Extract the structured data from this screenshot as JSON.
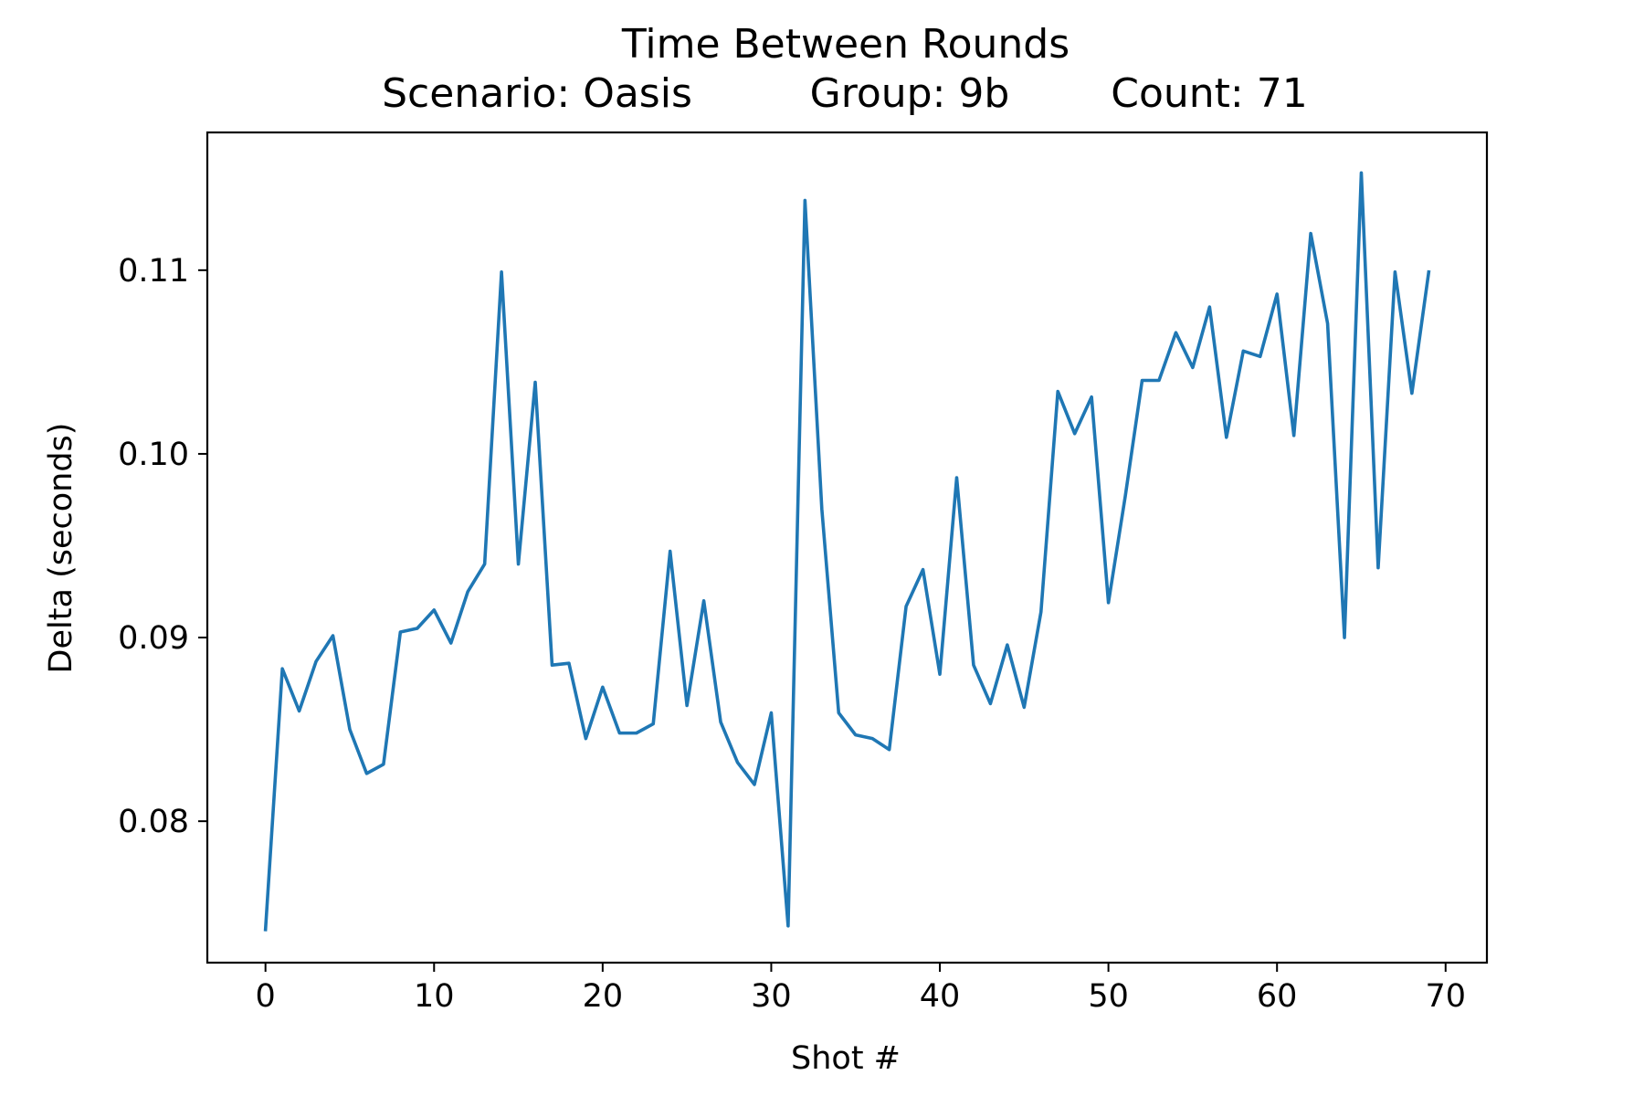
{
  "chart_data": {
    "type": "line",
    "title": "Time Between Rounds",
    "subtitle": {
      "scenario": "Scenario: Oasis",
      "group": "Group: 9b",
      "count": "Count: 71"
    },
    "xlabel": "Shot #",
    "ylabel": "Delta (seconds)",
    "xlim": [
      -3.45,
      72.45
    ],
    "ylim": [
      0.0723,
      0.1175
    ],
    "xticks": [
      0,
      10,
      20,
      30,
      40,
      50,
      60,
      70
    ],
    "xtick_labels": [
      "0",
      "10",
      "20",
      "30",
      "40",
      "50",
      "60",
      "70"
    ],
    "yticks": [
      0.08,
      0.09,
      0.1,
      0.11
    ],
    "ytick_labels": [
      "0.08",
      "0.09",
      "0.10",
      "0.11"
    ],
    "grid": false,
    "line_color": "#1f77b4",
    "series": [
      {
        "x": [
          0,
          1,
          2,
          3,
          4,
          5,
          6,
          7,
          8,
          9,
          10,
          11,
          12,
          13,
          14,
          15,
          16,
          17,
          18,
          19,
          20,
          21,
          22,
          23,
          24,
          25,
          26,
          27,
          28,
          29,
          30,
          31,
          32,
          33,
          34,
          35,
          36,
          37,
          38,
          39,
          40,
          41,
          42,
          43,
          44,
          45,
          46,
          47,
          48,
          49,
          50,
          51,
          52,
          53,
          54,
          55,
          56,
          57,
          58,
          59,
          60,
          61,
          62,
          63,
          64,
          65,
          66,
          67,
          68,
          69
        ],
        "values": [
          0.0741,
          0.0883,
          0.086,
          0.0887,
          0.0901,
          0.085,
          0.0826,
          0.0831,
          0.0903,
          0.0905,
          0.0915,
          0.0897,
          0.0925,
          0.094,
          0.1099,
          0.094,
          0.1039,
          0.0885,
          0.0886,
          0.0845,
          0.0873,
          0.0848,
          0.0848,
          0.0853,
          0.0947,
          0.0863,
          0.092,
          0.0854,
          0.0832,
          0.082,
          0.0859,
          0.0743,
          0.1138,
          0.097,
          0.0859,
          0.0847,
          0.0845,
          0.0839,
          0.0917,
          0.0937,
          0.088,
          0.0987,
          0.0885,
          0.0864,
          0.0896,
          0.0862,
          0.0914,
          0.1034,
          0.1011,
          0.1031,
          0.0919,
          0.0977,
          0.104,
          0.104,
          0.1066,
          0.1047,
          0.108,
          0.1009,
          0.1056,
          0.1053,
          0.1087,
          0.101,
          0.112,
          0.1071,
          0.09,
          0.1153,
          0.0938,
          0.1099,
          0.1033,
          0.1099
        ]
      }
    ]
  }
}
